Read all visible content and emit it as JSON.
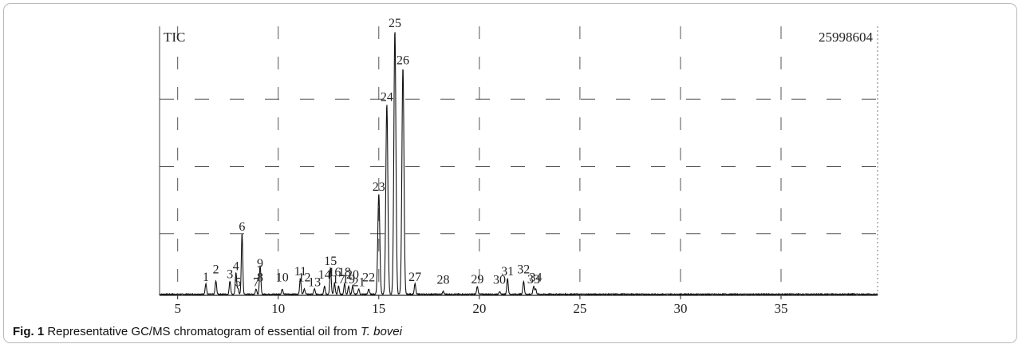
{
  "chart_data": {
    "type": "line",
    "title": "",
    "xlabel": "",
    "ylabel": "",
    "signal_label": "TIC",
    "max_intensity_label": "25998604",
    "xlim": [
      4.1,
      39.8
    ],
    "ylim": [
      0,
      100
    ],
    "x_ticks": [
      5,
      10,
      15,
      20,
      25,
      30,
      35
    ],
    "x_tick_labels": [
      "5",
      "10",
      "15",
      "20",
      "25",
      "30",
      "35"
    ],
    "grid": true,
    "peaks": [
      {
        "label": "1",
        "x": 6.4,
        "y": 4
      },
      {
        "label": "2",
        "x": 6.9,
        "y": 5
      },
      {
        "label": "3",
        "x": 7.6,
        "y": 5
      },
      {
        "label": "4",
        "x": 7.9,
        "y": 8
      },
      {
        "label": "5",
        "x": 8.0,
        "y": 2
      },
      {
        "label": "6",
        "x": 8.2,
        "y": 23
      },
      {
        "label": "7",
        "x": 8.9,
        "y": 2
      },
      {
        "label": "8",
        "x": 9.1,
        "y": 2
      },
      {
        "label": "9",
        "x": 9.1,
        "y": 9
      },
      {
        "label": "10",
        "x": 10.2,
        "y": 2
      },
      {
        "label": "11",
        "x": 11.1,
        "y": 6
      },
      {
        "label": "12",
        "x": 11.3,
        "y": 2
      },
      {
        "label": "13",
        "x": 11.8,
        "y": 2
      },
      {
        "label": "14",
        "x": 12.3,
        "y": 3
      },
      {
        "label": "15",
        "x": 12.6,
        "y": 10
      },
      {
        "label": "16",
        "x": 12.8,
        "y": 4
      },
      {
        "label": "17",
        "x": 13.0,
        "y": 3
      },
      {
        "label": "18",
        "x": 13.3,
        "y": 4
      },
      {
        "label": "19",
        "x": 13.5,
        "y": 3
      },
      {
        "label": "20",
        "x": 13.7,
        "y": 3
      },
      {
        "label": "21",
        "x": 14.0,
        "y": 2
      },
      {
        "label": "22",
        "x": 14.5,
        "y": 2
      },
      {
        "label": "23",
        "x": 15.0,
        "y": 38
      },
      {
        "label": "24",
        "x": 15.4,
        "y": 72
      },
      {
        "label": "25",
        "x": 15.8,
        "y": 100
      },
      {
        "label": "26",
        "x": 16.2,
        "y": 86
      },
      {
        "label": "27",
        "x": 16.8,
        "y": 4
      },
      {
        "label": "28",
        "x": 18.2,
        "y": 1
      },
      {
        "label": "29",
        "x": 19.9,
        "y": 3
      },
      {
        "label": "30",
        "x": 21.0,
        "y": 1
      },
      {
        "label": "31",
        "x": 21.4,
        "y": 6
      },
      {
        "label": "32",
        "x": 22.2,
        "y": 5
      },
      {
        "label": "33",
        "x": 22.7,
        "y": 3
      },
      {
        "label": "34",
        "x": 22.8,
        "y": 2
      }
    ]
  },
  "caption": {
    "label": "Fig. 1",
    "text_before": " Representative GC/MS chromatogram of essential oil from ",
    "species": "T. bovei"
  }
}
